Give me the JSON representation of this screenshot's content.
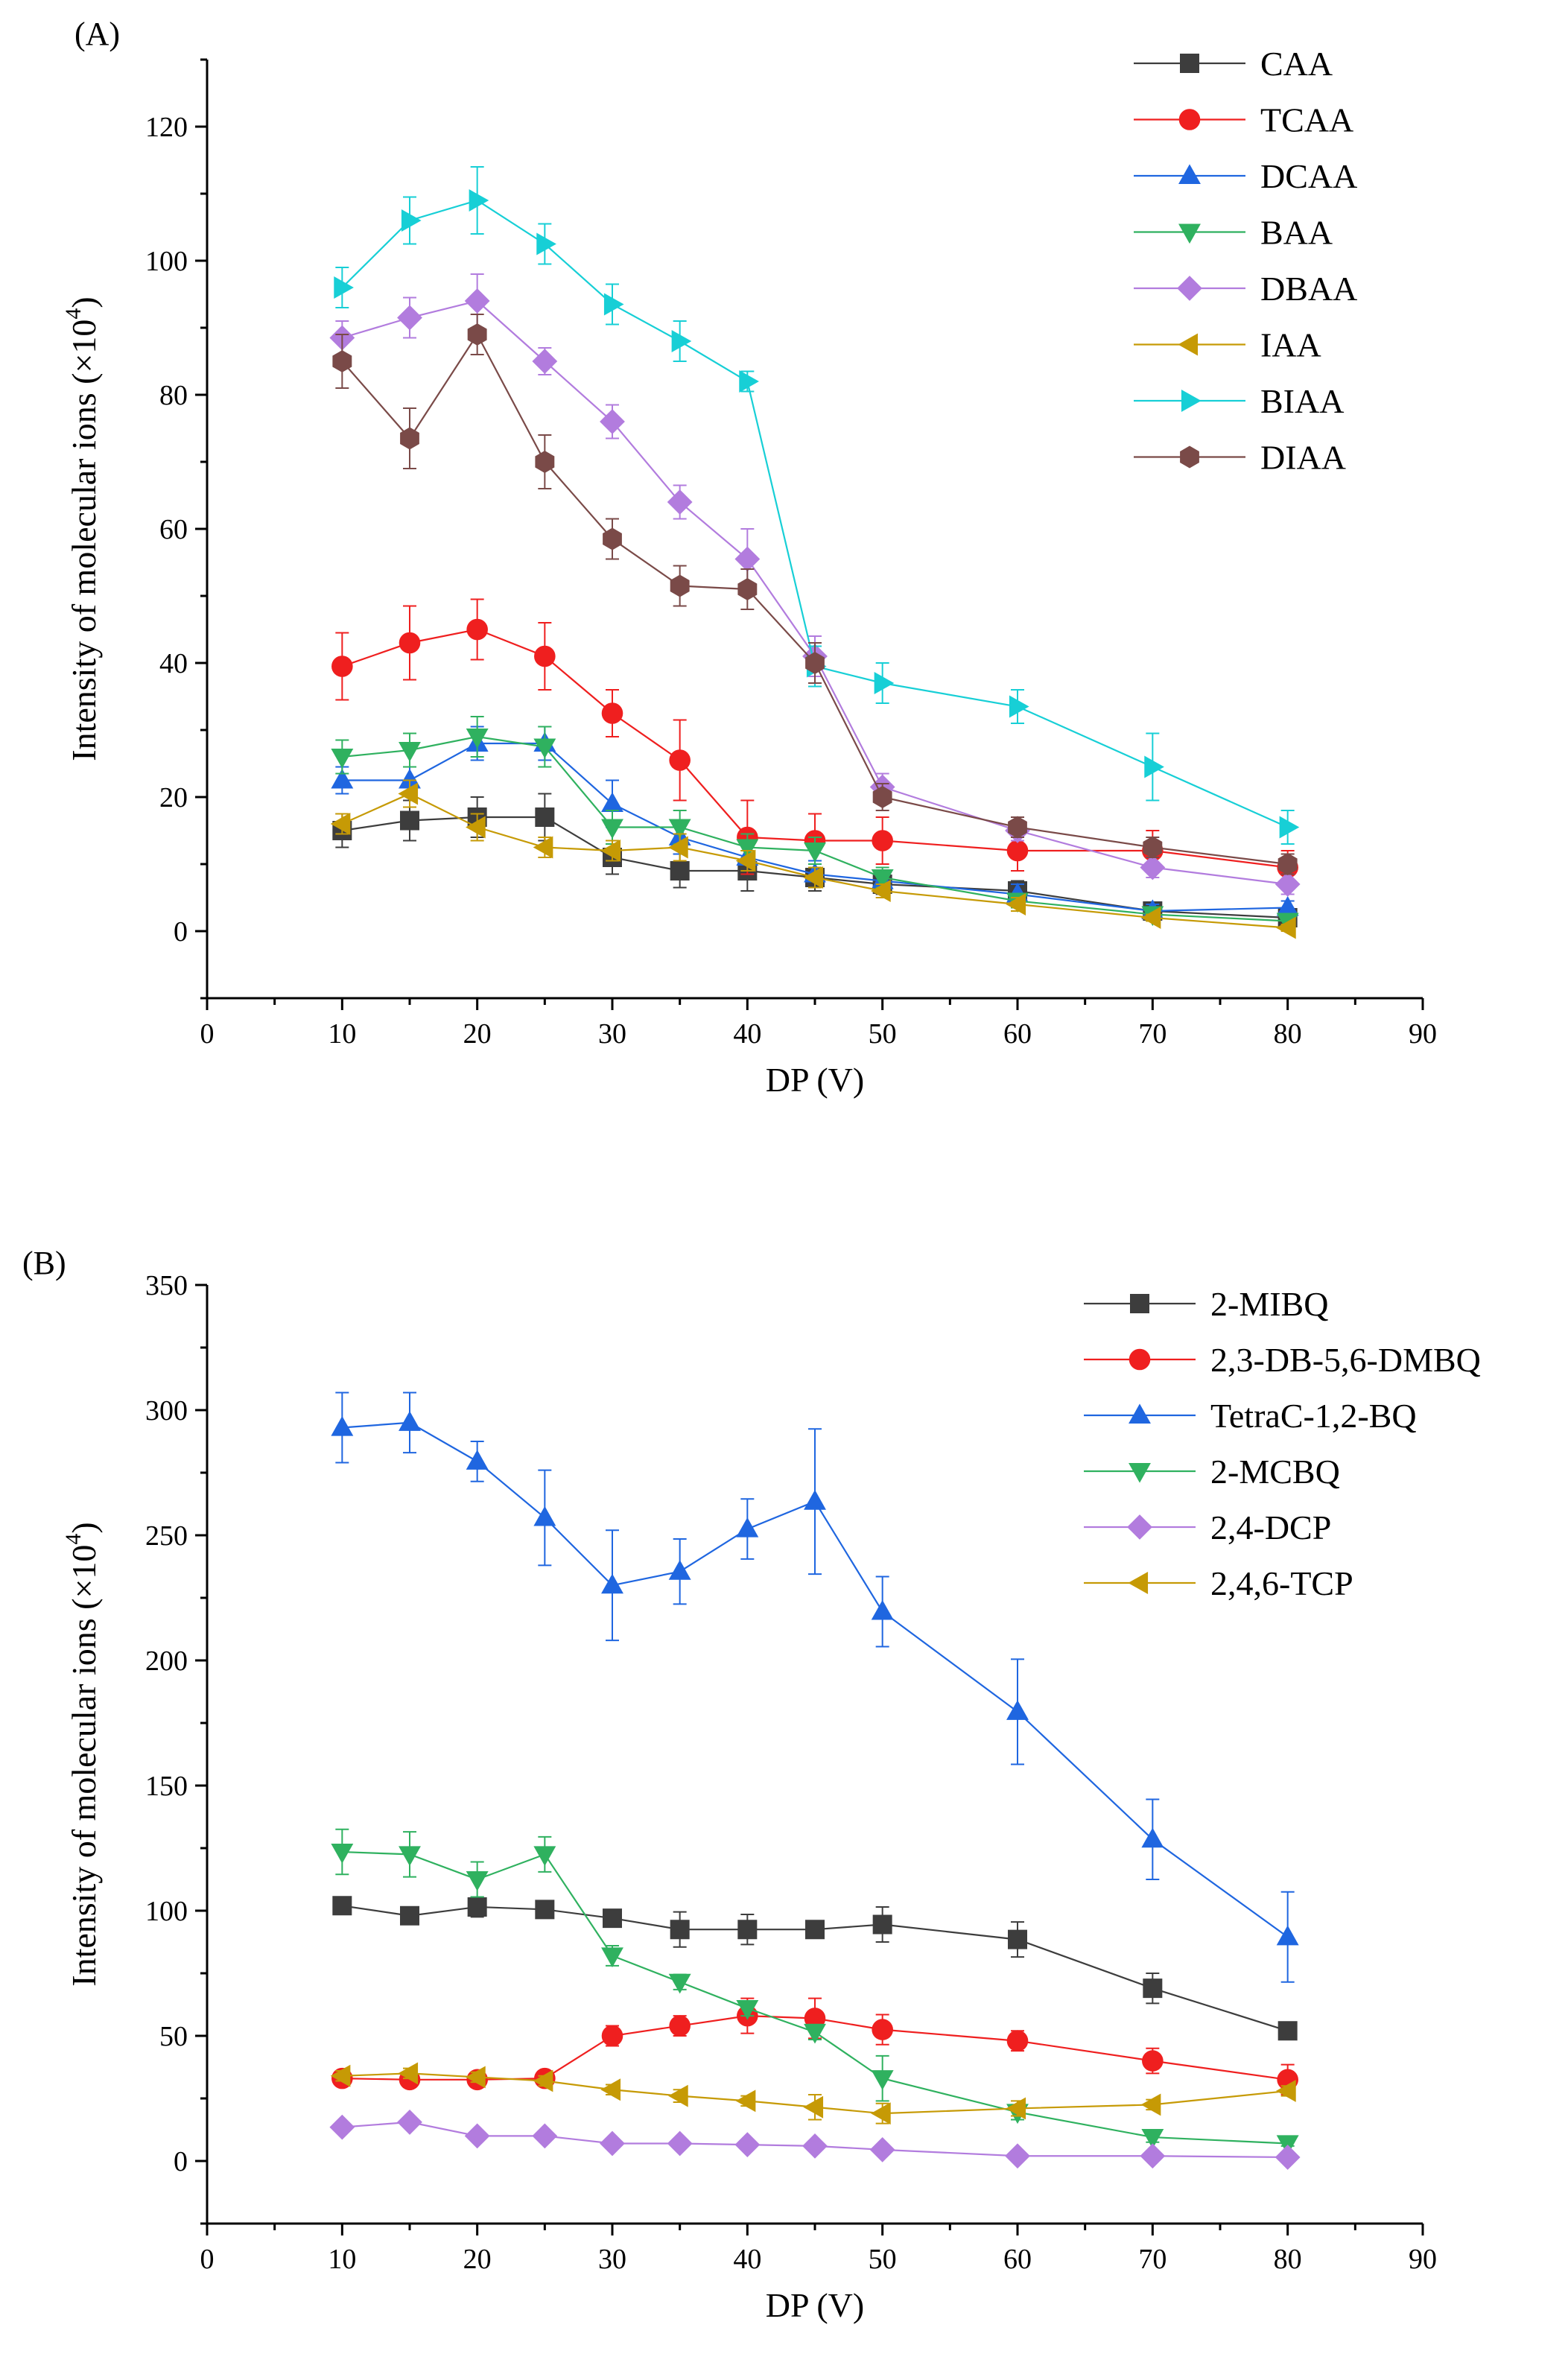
{
  "chart_data": [
    {
      "type": "line",
      "panel_label": "(A)",
      "xlabel": "DP (V)",
      "ylabel": "Intensity of molecular ions (×10",
      "ylabel_exp": "4",
      "ylabel_close": ")",
      "xlim": [
        0,
        90
      ],
      "ylim": [
        -10,
        130
      ],
      "xticks": [
        0,
        10,
        20,
        30,
        40,
        50,
        60,
        70,
        80,
        90
      ],
      "yticks": [
        0,
        20,
        40,
        60,
        80,
        100,
        120
      ],
      "legend_position": "top-right",
      "x": [
        10,
        15,
        20,
        25,
        30,
        35,
        40,
        45,
        50,
        60,
        70,
        80
      ],
      "series": [
        {
          "name": "CAA",
          "color": "#3d3d3d",
          "marker": "square",
          "values": [
            15,
            16.5,
            17,
            17,
            11,
            9,
            9,
            8,
            7,
            6,
            3,
            2
          ],
          "errors": [
            2.5,
            3,
            3,
            3.5,
            2.5,
            2.5,
            3,
            2,
            1.5,
            1.5,
            1,
            1
          ]
        },
        {
          "name": "TCAA",
          "color": "#ef1f1f",
          "marker": "circle",
          "values": [
            39.5,
            43,
            45,
            41,
            32.5,
            25.5,
            14,
            13.5,
            13.5,
            12,
            12,
            9.5
          ],
          "errors": [
            5,
            5.5,
            4.5,
            5,
            3.5,
            6,
            5.5,
            4,
            3.5,
            3,
            3,
            2.5
          ]
        },
        {
          "name": "DCAA",
          "color": "#1f66e0",
          "marker": "triangle-up",
          "values": [
            22.5,
            22.5,
            28,
            28,
            19,
            14,
            11,
            8.5,
            7.5,
            5.5,
            3,
            3.5
          ],
          "errors": [
            2,
            2,
            2.5,
            2.5,
            3.5,
            2.5,
            2,
            2,
            1.5,
            1.5,
            1,
            1
          ]
        },
        {
          "name": "BAA",
          "color": "#2fb15f",
          "marker": "triangle-down",
          "values": [
            26,
            27,
            29,
            27.5,
            15.5,
            15.5,
            12.5,
            12,
            8,
            4.5,
            2.5,
            1.5
          ],
          "errors": [
            2.5,
            2.5,
            3,
            3,
            2.5,
            2.5,
            2,
            2,
            1.5,
            1,
            1,
            0.5
          ]
        },
        {
          "name": "DBAA",
          "color": "#b27cde",
          "marker": "diamond",
          "values": [
            88.5,
            91.5,
            94,
            85,
            76,
            64,
            55.5,
            41,
            21.5,
            15,
            9.5,
            7
          ],
          "errors": [
            2.5,
            3,
            4,
            2,
            2.5,
            2.5,
            4.5,
            3,
            2,
            1.5,
            1.5,
            1.5
          ]
        },
        {
          "name": "IAA",
          "color": "#c69a05",
          "marker": "triangle-left",
          "values": [
            16,
            20.5,
            15.5,
            12.5,
            12,
            12.5,
            10.5,
            8,
            6,
            4,
            2,
            0.5
          ],
          "errors": [
            1.5,
            2,
            2,
            1.5,
            1.5,
            2,
            1.5,
            1.5,
            1,
            1,
            0.5,
            0.5
          ]
        },
        {
          "name": "BIAA",
          "color": "#17cfd6",
          "marker": "triangle-right",
          "values": [
            96,
            106,
            109,
            102.5,
            93.5,
            88,
            82,
            39.5,
            37,
            33.5,
            24.5,
            15.5
          ],
          "errors": [
            3,
            3.5,
            5,
            3,
            3,
            3,
            1.5,
            3,
            3,
            2.5,
            5,
            2.5
          ]
        },
        {
          "name": "DIAA",
          "color": "#7a4a48",
          "marker": "hexagon",
          "values": [
            85,
            73.5,
            89,
            70,
            58.5,
            51.5,
            51,
            40,
            20,
            15.5,
            12.5,
            10
          ],
          "errors": [
            4,
            4.5,
            3,
            4,
            3,
            3,
            3,
            3,
            2,
            1.5,
            1.5,
            1.5
          ]
        }
      ]
    },
    {
      "type": "line",
      "panel_label": "(B)",
      "xlabel": "DP (V)",
      "ylabel": "Intensity of molecular ions (×10",
      "ylabel_exp": "4",
      "ylabel_close": ")",
      "xlim": [
        0,
        90
      ],
      "ylim": [
        -25,
        350
      ],
      "xticks": [
        0,
        10,
        20,
        30,
        40,
        50,
        60,
        70,
        80,
        90
      ],
      "yticks": [
        0,
        50,
        100,
        150,
        200,
        250,
        300,
        350
      ],
      "legend_position": "top-right",
      "x": [
        10,
        15,
        20,
        25,
        30,
        35,
        40,
        45,
        50,
        60,
        70,
        80
      ],
      "series": [
        {
          "name": "2-MIBQ",
          "color": "#3d3d3d",
          "marker": "square",
          "values": [
            102,
            98,
            101.5,
            100.5,
            97,
            92.5,
            92.5,
            92.5,
            94.5,
            88.5,
            69,
            52
          ],
          "errors": [
            3,
            3,
            4,
            3,
            3,
            7,
            6,
            3,
            7,
            7,
            6,
            3
          ]
        },
        {
          "name": "2,3-DB-5,6-DMBQ",
          "color": "#ef1f1f",
          "marker": "circle",
          "values": [
            33,
            32.5,
            32.5,
            33,
            50,
            54,
            58,
            57,
            52.5,
            48,
            40,
            32.5
          ],
          "errors": [
            3,
            3,
            3,
            3,
            4,
            4,
            7,
            8,
            6,
            4,
            5,
            6
          ]
        },
        {
          "name": "TetraC-1,2-BQ",
          "color": "#1f66e0",
          "marker": "triangle-up",
          "values": [
            293,
            295,
            279.5,
            257,
            230,
            235.5,
            252.5,
            263.5,
            219.5,
            179.5,
            128.5,
            89.5
          ],
          "errors": [
            14,
            12,
            8,
            19,
            22,
            13,
            12,
            29,
            14,
            21,
            16,
            18
          ]
        },
        {
          "name": "2-MCBQ",
          "color": "#2fb15f",
          "marker": "triangle-down",
          "values": [
            123.5,
            122.5,
            112.5,
            122.5,
            82,
            71.5,
            61,
            51.5,
            33,
            19.5,
            9.5,
            7
          ],
          "errors": [
            9,
            9,
            7,
            7,
            4,
            3,
            3,
            3,
            9,
            3,
            2,
            1
          ]
        },
        {
          "name": "2,4-DCP",
          "color": "#b27cde",
          "marker": "diamond",
          "values": [
            13.5,
            15.5,
            10,
            10,
            7,
            7,
            6.5,
            6,
            4.5,
            2,
            2,
            1.5
          ],
          "errors": [
            2,
            2,
            1.5,
            1.5,
            1,
            1,
            1,
            1,
            1,
            0.5,
            0.5,
            0.5
          ]
        },
        {
          "name": "2,4,6-TCP",
          "color": "#c69a05",
          "marker": "triangle-left",
          "values": [
            34,
            35,
            33.5,
            32,
            28.5,
            26,
            24,
            21.5,
            19,
            21,
            22.5,
            28
          ],
          "errors": [
            2,
            2,
            2,
            2,
            2,
            2.5,
            2,
            5,
            4,
            3,
            2,
            2
          ]
        }
      ]
    }
  ]
}
